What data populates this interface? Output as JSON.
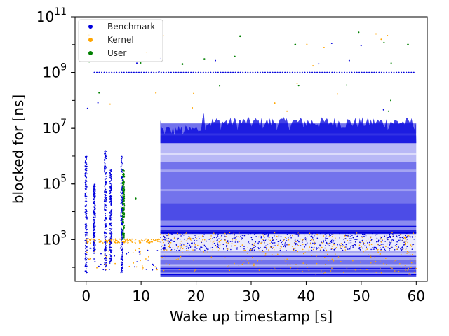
{
  "chart_data": {
    "type": "scatter",
    "title": "",
    "xlabel": "Wake up timestamp [s]",
    "ylabel": "blocked for [ns]",
    "xlim": [
      -2,
      62
    ],
    "ylim_log10": [
      1.5,
      11
    ],
    "y_scale": "log",
    "x_ticks": [
      0,
      10,
      20,
      30,
      40,
      50,
      60
    ],
    "x_tick_labels": [
      "0",
      "10",
      "20",
      "30",
      "40",
      "50",
      "60"
    ],
    "y_ticks_log10": [
      3,
      5,
      7,
      9,
      11
    ],
    "y_tick_bases": [
      "10",
      "10",
      "10",
      "10",
      "10"
    ],
    "y_tick_exponents": [
      "3",
      "5",
      "7",
      "9",
      "11"
    ],
    "grid": false,
    "legend_position": "top-left",
    "series": [
      {
        "name": "Benchmark",
        "color": "#0000dd"
      },
      {
        "name": "Kernel",
        "color": "#ffa500"
      },
      {
        "name": "User",
        "color": "#008000"
      }
    ],
    "benchmark_dense_region": {
      "x_start": 13.5,
      "x_end": 60,
      "y_low_ns": 50,
      "y_high_ns": 15000000
    },
    "benchmark_timer_line": {
      "x_start": 1.5,
      "x_end": 60,
      "y_ns": 1000000000
    },
    "kernel_band": {
      "x_start": 0,
      "x_end": 60,
      "y_ns": 1000
    },
    "user_outliers": [
      {
        "x": 17.5,
        "y_ns": 2000000000
      },
      {
        "x": 21.5,
        "y_ns": 3000000000
      },
      {
        "x": 28,
        "y_ns": 20000000000
      },
      {
        "x": 38,
        "y_ns": 10000000000
      },
      {
        "x": 58.5,
        "y_ns": 10000000000
      },
      {
        "x": 6.8,
        "y_ns": 200000
      },
      {
        "x": 9,
        "y_ns": 30000
      }
    ]
  }
}
